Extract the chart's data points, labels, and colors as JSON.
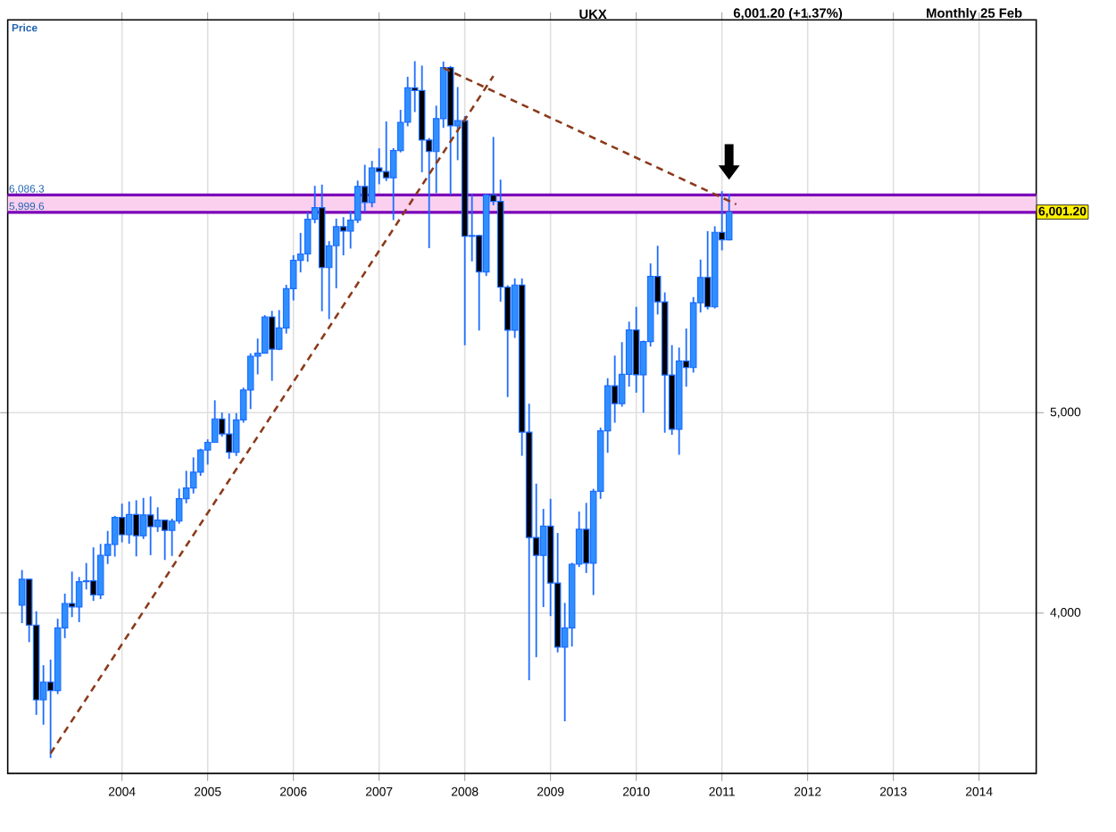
{
  "chart_data": {
    "type": "candlestick",
    "title": "UKX",
    "subtitle": "6,001.20 (+1.37%)",
    "ylabel": "Price",
    "annotations": [
      "Monthly 25 Feb",
      "6,001.20"
    ],
    "x": [
      "2002-11",
      "2002-12",
      "2003-01",
      "2003-02",
      "2003-03",
      "2003-04",
      "2003-05",
      "2003-06",
      "2003-07",
      "2003-08",
      "2003-09",
      "2003-10",
      "2003-11",
      "2003-12",
      "2004-01",
      "2004-02",
      "2004-03",
      "2004-04",
      "2004-05",
      "2004-06",
      "2004-07",
      "2004-08",
      "2004-09",
      "2004-10",
      "2004-11",
      "2004-12",
      "2005-01",
      "2005-02",
      "2005-03",
      "2005-04",
      "2005-05",
      "2005-06",
      "2005-07",
      "2005-08",
      "2005-09",
      "2005-10",
      "2005-11",
      "2005-12",
      "2006-01",
      "2006-02",
      "2006-03",
      "2006-04",
      "2006-05",
      "2006-06",
      "2006-07",
      "2006-08",
      "2006-09",
      "2006-10",
      "2006-11",
      "2006-12",
      "2007-01",
      "2007-02",
      "2007-03",
      "2007-04",
      "2007-05",
      "2007-06",
      "2007-07",
      "2007-08",
      "2007-09",
      "2007-10",
      "2007-11",
      "2007-12",
      "2008-01",
      "2008-02",
      "2008-03",
      "2008-04",
      "2008-05",
      "2008-06",
      "2008-07",
      "2008-08",
      "2008-09",
      "2008-10",
      "2008-11",
      "2008-12",
      "2009-01",
      "2009-02",
      "2009-03",
      "2009-04",
      "2009-05",
      "2009-06",
      "2009-07",
      "2009-08",
      "2009-09",
      "2009-10",
      "2009-11",
      "2009-12",
      "2010-01",
      "2010-02",
      "2010-03",
      "2010-04",
      "2010-05",
      "2010-06",
      "2010-07",
      "2010-08",
      "2010-09",
      "2010-10",
      "2010-11",
      "2010-12",
      "2011-01",
      "2011-02"
    ],
    "ohlc": [
      [
        4040,
        4215,
        3950,
        4169
      ],
      [
        4169,
        4170,
        3855,
        3940
      ],
      [
        3940,
        4009,
        3492,
        3567
      ],
      [
        3567,
        3740,
        3443,
        3656
      ],
      [
        3656,
        3768,
        3277,
        3613
      ],
      [
        3613,
        3972,
        3596,
        3926
      ],
      [
        3926,
        4097,
        3875,
        4048
      ],
      [
        4048,
        4207,
        3980,
        4031
      ],
      [
        4031,
        4180,
        3955,
        4157
      ],
      [
        4157,
        4250,
        4118,
        4161
      ],
      [
        4161,
        4328,
        4061,
        4091
      ],
      [
        4091,
        4345,
        4070,
        4288
      ],
      [
        4288,
        4410,
        4245,
        4343
      ],
      [
        4343,
        4485,
        4282,
        4477
      ],
      [
        4477,
        4546,
        4353,
        4391
      ],
      [
        4391,
        4557,
        4346,
        4492
      ],
      [
        4492,
        4563,
        4283,
        4386
      ],
      [
        4386,
        4575,
        4370,
        4490
      ],
      [
        4490,
        4582,
        4289,
        4431
      ],
      [
        4431,
        4528,
        4405,
        4464
      ],
      [
        4464,
        4466,
        4265,
        4413
      ],
      [
        4413,
        4471,
        4285,
        4459
      ],
      [
        4459,
        4621,
        4446,
        4571
      ],
      [
        4571,
        4710,
        4548,
        4624
      ],
      [
        4624,
        4777,
        4597,
        4703
      ],
      [
        4703,
        4820,
        4685,
        4814
      ],
      [
        4814,
        4867,
        4741,
        4852
      ],
      [
        4852,
        5062,
        4850,
        4969
      ],
      [
        4969,
        5001,
        4880,
        4894
      ],
      [
        4894,
        4996,
        4770,
        4802
      ],
      [
        4802,
        4998,
        4784,
        4964
      ],
      [
        4964,
        5125,
        4950,
        5113
      ],
      [
        5113,
        5296,
        5018,
        5282
      ],
      [
        5282,
        5370,
        5191,
        5297
      ],
      [
        5297,
        5487,
        5296,
        5478
      ],
      [
        5478,
        5508,
        5159,
        5317
      ],
      [
        5317,
        5512,
        5312,
        5423
      ],
      [
        5423,
        5638,
        5395,
        5619
      ],
      [
        5619,
        5786,
        5560,
        5760
      ],
      [
        5760,
        5897,
        5700,
        5792
      ],
      [
        5792,
        6000,
        5753,
        5965
      ],
      [
        5965,
        6132,
        5945,
        6023
      ],
      [
        6023,
        6138,
        5506,
        5724
      ],
      [
        5724,
        5856,
        5467,
        5833
      ],
      [
        5833,
        5968,
        5621,
        5928
      ],
      [
        5928,
        5976,
        5785,
        5906
      ],
      [
        5906,
        6006,
        5819,
        5961
      ],
      [
        5961,
        6158,
        5946,
        6129
      ],
      [
        6129,
        6237,
        6004,
        6049
      ],
      [
        6049,
        6256,
        6025,
        6221
      ],
      [
        6221,
        6319,
        6140,
        6203
      ],
      [
        6203,
        6453,
        6156,
        6172
      ],
      [
        6172,
        6320,
        5961,
        6308
      ],
      [
        6308,
        6511,
        6299,
        6449
      ],
      [
        6449,
        6676,
        6429,
        6621
      ],
      [
        6621,
        6754,
        6500,
        6608
      ],
      [
        6608,
        6732,
        6200,
        6360
      ],
      [
        6360,
        6371,
        5821,
        6303
      ],
      [
        6303,
        6532,
        6095,
        6467
      ],
      [
        6467,
        6752,
        6421,
        6722
      ],
      [
        6722,
        6730,
        6088,
        6432
      ],
      [
        6432,
        6625,
        6260,
        6457
      ],
      [
        6457,
        6480,
        5337,
        5880
      ],
      [
        5880,
        6090,
        5755,
        5884
      ],
      [
        5884,
        5888,
        5410,
        5702
      ],
      [
        5702,
        6093,
        5682,
        6087
      ],
      [
        6087,
        6376,
        6035,
        6054
      ],
      [
        6054,
        6163,
        5554,
        5626
      ],
      [
        5626,
        5636,
        5078,
        5412
      ],
      [
        5412,
        5670,
        5373,
        5637
      ],
      [
        5637,
        5670,
        4785,
        4903
      ],
      [
        4903,
        5045,
        3665,
        4377
      ],
      [
        4377,
        4646,
        3780,
        4288
      ],
      [
        4288,
        4520,
        4030,
        4434
      ],
      [
        4434,
        4570,
        3985,
        4150
      ],
      [
        4150,
        4400,
        3804,
        3830
      ],
      [
        3830,
        4051,
        3460,
        3926
      ],
      [
        3926,
        4251,
        3833,
        4244
      ],
      [
        4244,
        4507,
        4230,
        4418
      ],
      [
        4418,
        4550,
        4200,
        4249
      ],
      [
        4249,
        4620,
        4090,
        4608
      ],
      [
        4608,
        4925,
        4570,
        4909
      ],
      [
        4909,
        5172,
        4800,
        5134
      ],
      [
        5134,
        5285,
        4950,
        5045
      ],
      [
        5045,
        5352,
        5030,
        5191
      ],
      [
        5191,
        5454,
        5130,
        5413
      ],
      [
        5413,
        5528,
        5100,
        5189
      ],
      [
        5189,
        5360,
        5000,
        5355
      ],
      [
        5355,
        5745,
        5330,
        5680
      ],
      [
        5680,
        5833,
        5490,
        5553
      ],
      [
        5553,
        5600,
        4900,
        5188
      ],
      [
        5188,
        5337,
        4890,
        4917
      ],
      [
        4917,
        5325,
        4790,
        5258
      ],
      [
        5258,
        5420,
        5130,
        5225
      ],
      [
        5225,
        5577,
        5200,
        5549
      ],
      [
        5549,
        5764,
        5500,
        5675
      ],
      [
        5675,
        5906,
        5515,
        5528
      ],
      [
        5528,
        5930,
        5520,
        5900
      ],
      [
        5900,
        6105,
        5810,
        5863
      ],
      [
        5863,
        6092,
        5860,
        6001.2
      ]
    ],
    "series": [
      {
        "type": "line",
        "x": [
          "2003-03",
          "2008-05"
        ],
        "values": [
          3300,
          6680
        ],
        "color": "#8b3a1a",
        "line_style": "dashed"
      },
      {
        "type": "line",
        "x": [
          "2007-10",
          "2011-03"
        ],
        "values": [
          6720,
          6040
        ],
        "color": "#8b3a1a",
        "line_style": "dashed"
      }
    ],
    "ref_lines": [
      {
        "axis": "y",
        "value": 6086.3,
        "label": "6,086.3",
        "color": "#7a00b8"
      },
      {
        "axis": "y",
        "value": 5999.6,
        "label": "5,999.6",
        "color": "#7a00b8"
      }
    ],
    "bands": [
      {
        "axis": "y",
        "from": 5999.6,
        "to": 6086.3,
        "color": "#fbd0ee"
      }
    ],
    "xlim": [
      "2002-09",
      "2014-09"
    ],
    "ylim": [
      3200,
      6960
    ],
    "xticks": [
      "2004",
      "2005",
      "2006",
      "2007",
      "2008",
      "2009",
      "2010",
      "2011",
      "2012",
      "2013",
      "2014"
    ],
    "yticks": [
      {
        "value": 4000,
        "label": "4,000"
      },
      {
        "value": 5000,
        "label": "5,000"
      }
    ],
    "grid": true
  }
}
